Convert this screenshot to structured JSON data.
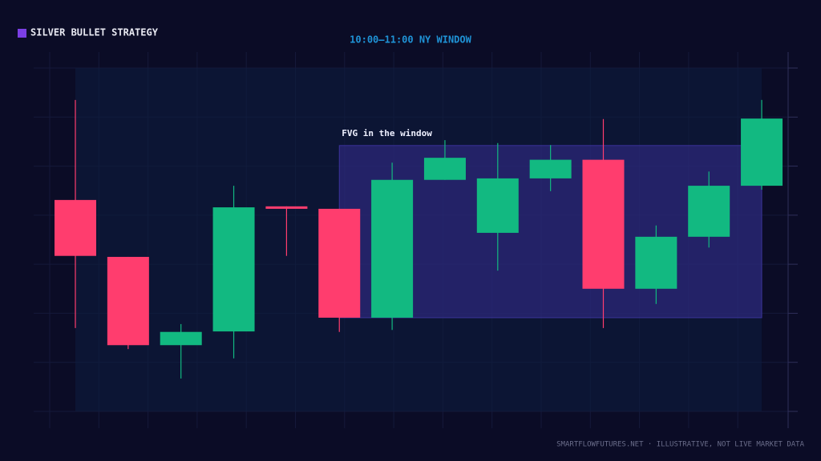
{
  "chart_data": {
    "type": "candlestick",
    "title": "SILVER BULLET STRATEGY",
    "subtitle": "10:00–11:00 NY WINDOW",
    "footer": "SMARTFLOWFUTURES.NET · ILLUSTRATIVE, NOT LIVE MARKET DATA",
    "categories": [
      null,
      null,
      null,
      null,
      null,
      null,
      null,
      null,
      null,
      null,
      null,
      null,
      null,
      null
    ],
    "open": [
      43.1,
      31.5,
      13.5,
      16.3,
      41.8,
      41.3,
      19.1,
      47.2,
      36.4,
      47.5,
      51.3,
      25.0,
      35.6,
      46.0
    ],
    "close": [
      31.7,
      13.5,
      16.2,
      41.6,
      41.3,
      19.1,
      47.2,
      51.7,
      47.5,
      51.3,
      25.0,
      35.6,
      46.0,
      59.7
    ],
    "high": [
      63.5,
      31.5,
      17.8,
      46.0,
      41.8,
      41.3,
      50.7,
      55.3,
      54.7,
      54.3,
      59.6,
      37.9,
      48.9,
      63.5
    ],
    "low": [
      17.0,
      12.7,
      6.7,
      10.8,
      31.7,
      16.2,
      16.6,
      47.2,
      28.7,
      44.9,
      17.0,
      21.9,
      33.4,
      45.2
    ],
    "up_color": "#12b981",
    "down_color": "#ff3d6e",
    "ylim": [
      0,
      70
    ],
    "zones": [
      {
        "label": "FVG in the window",
        "low": 19.1,
        "high": 54.2,
        "start": 5,
        "end": 13,
        "color": "#3a2f9a"
      }
    ],
    "window": {
      "start": 0,
      "end": 13
    }
  }
}
